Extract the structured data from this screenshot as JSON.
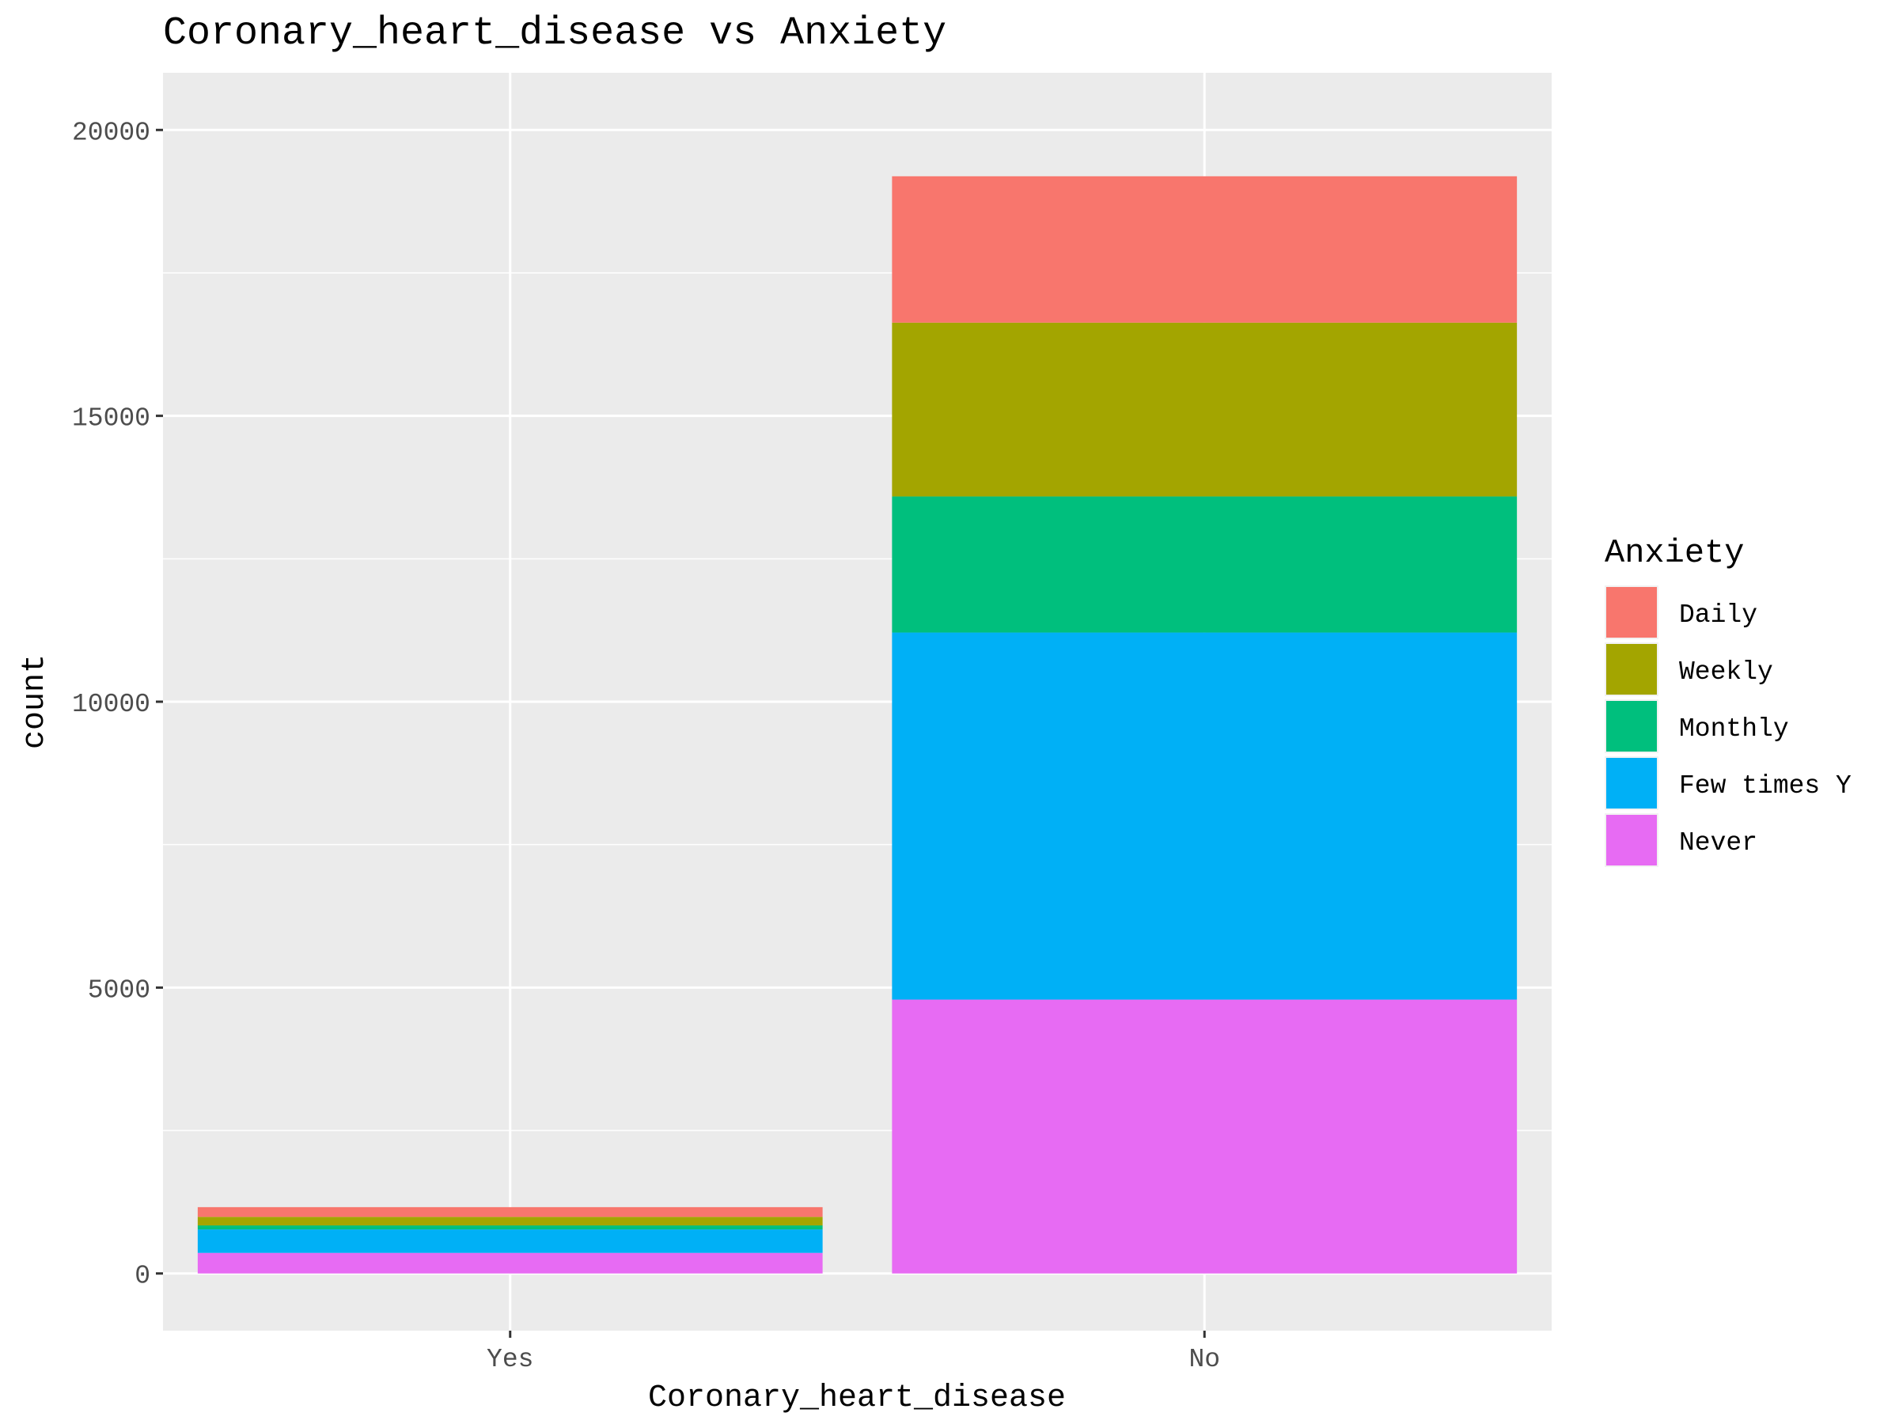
{
  "chart_data": {
    "type": "bar",
    "stacked": true,
    "title": "Coronary_heart_disease vs Anxiety",
    "xlabel": "Coronary_heart_disease",
    "ylabel": "count",
    "categories": [
      "Yes",
      "No"
    ],
    "ylim": [
      -1000,
      21000
    ],
    "yticks": [
      0,
      5000,
      10000,
      15000,
      20000
    ],
    "grid": true,
    "legend": {
      "title": "Anxiety",
      "placement": "right"
    },
    "series": [
      {
        "name": "Daily",
        "color": "#F8766D",
        "values": [
          170,
          2560
        ]
      },
      {
        "name": "Weekly",
        "color": "#A3A500",
        "values": [
          150,
          3040
        ]
      },
      {
        "name": "Monthly",
        "color": "#00BF7D",
        "values": [
          70,
          2380
        ]
      },
      {
        "name": "Few times Y",
        "color": "#00B0F6",
        "values": [
          410,
          6420
        ]
      },
      {
        "name": "Never",
        "color": "#E76BF3",
        "values": [
          360,
          4790
        ]
      }
    ]
  }
}
